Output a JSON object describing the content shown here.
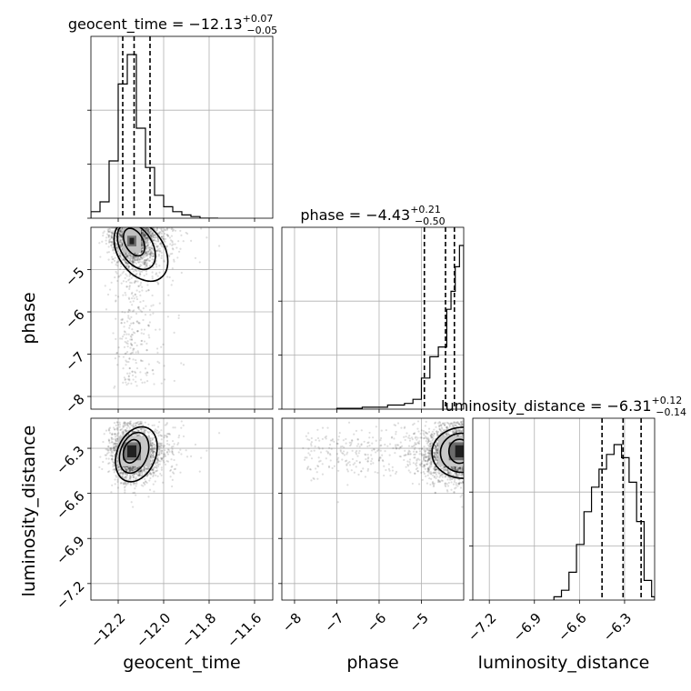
{
  "chart_data": {
    "type": "corner",
    "parameters": [
      "geocent_time",
      "phase",
      "luminosity_distance"
    ],
    "axis_labels": {
      "x": [
        "geocent_time",
        "phase",
        "luminosity_distance"
      ],
      "y": [
        "",
        "phase",
        "luminosity_distance"
      ]
    },
    "titles": [
      {
        "name": "geocent_time",
        "median": "−12.13",
        "plus": "+0.07",
        "minus": "−0.05"
      },
      {
        "name": "phase",
        "median": "−4.43",
        "plus": "+0.21",
        "minus": "−0.50"
      },
      {
        "name": "luminosity_distance",
        "median": "−6.31",
        "plus": "+0.12",
        "minus": "−0.14"
      }
    ],
    "ranges": {
      "geocent_time": [
        -12.32,
        -11.52
      ],
      "phase": [
        -8.3,
        -4.0
      ],
      "luminosity_distance": [
        -7.31,
        -6.1
      ]
    },
    "ticks": {
      "geocent_time": [
        -12.2,
        -12.0,
        -11.8,
        -11.6
      ],
      "phase": [
        -8,
        -7,
        -6,
        -5
      ],
      "luminosity_distance": [
        -7.2,
        -6.9,
        -6.6,
        -6.3
      ]
    },
    "tick_labels": {
      "geocent_time": [
        "−12.2",
        "−12.0",
        "−11.8",
        "−11.6"
      ],
      "phase": [
        "−8",
        "−7",
        "−6",
        "−5"
      ],
      "luminosity_distance": [
        "−7.2",
        "−6.9",
        "−6.6",
        "−6.3"
      ]
    },
    "quantiles": {
      "geocent_time": [
        -12.18,
        -12.13,
        -12.06
      ],
      "phase": [
        -4.93,
        -4.43,
        -4.22
      ],
      "luminosity_distance": [
        -6.45,
        -6.31,
        -6.19
      ]
    },
    "histograms": {
      "geocent_time": {
        "edges": [
          -12.32,
          -12.28,
          -12.24,
          -12.2,
          -12.16,
          -12.12,
          -12.08,
          -12.04,
          -12.0,
          -11.96,
          -11.92,
          -11.88,
          -11.84,
          -11.8,
          -11.76
        ],
        "counts": [
          0.04,
          0.1,
          0.35,
          0.82,
          1.0,
          0.55,
          0.31,
          0.14,
          0.07,
          0.04,
          0.02,
          0.01,
          0.0,
          0.0
        ]
      },
      "phase": {
        "edges": [
          -7.0,
          -6.4,
          -5.8,
          -5.4,
          -5.2,
          -5.0,
          -4.8,
          -4.6,
          -4.4,
          -4.3,
          -4.2,
          -4.1,
          -4.0
        ],
        "counts": [
          0.005,
          0.012,
          0.025,
          0.035,
          0.06,
          0.19,
          0.32,
          0.38,
          0.61,
          0.72,
          0.87,
          1.0
        ]
      },
      "luminosity_distance": {
        "edges": [
          -6.77,
          -6.72,
          -6.67,
          -6.62,
          -6.57,
          -6.52,
          -6.47,
          -6.42,
          -6.37,
          -6.32,
          -6.27,
          -6.22,
          -6.17,
          -6.12,
          -6.1
        ],
        "counts": [
          0.02,
          0.06,
          0.17,
          0.34,
          0.54,
          0.69,
          0.8,
          0.89,
          0.95,
          0.87,
          0.72,
          0.48,
          0.12,
          0.02
        ]
      }
    },
    "joint_peaks": {
      "phase_vs_geocent_time": {
        "x": -12.14,
        "y": -4.3
      },
      "luminosity_distance_vs_geocent_time": {
        "x": -12.14,
        "y": -6.33
      },
      "luminosity_distance_vs_phase": {
        "x": -4.18,
        "y": -6.33
      }
    },
    "grid": true,
    "dashed_quantile_lines": true,
    "contour_levels": 3,
    "point_color": "#808080",
    "line_color": "#000000"
  }
}
